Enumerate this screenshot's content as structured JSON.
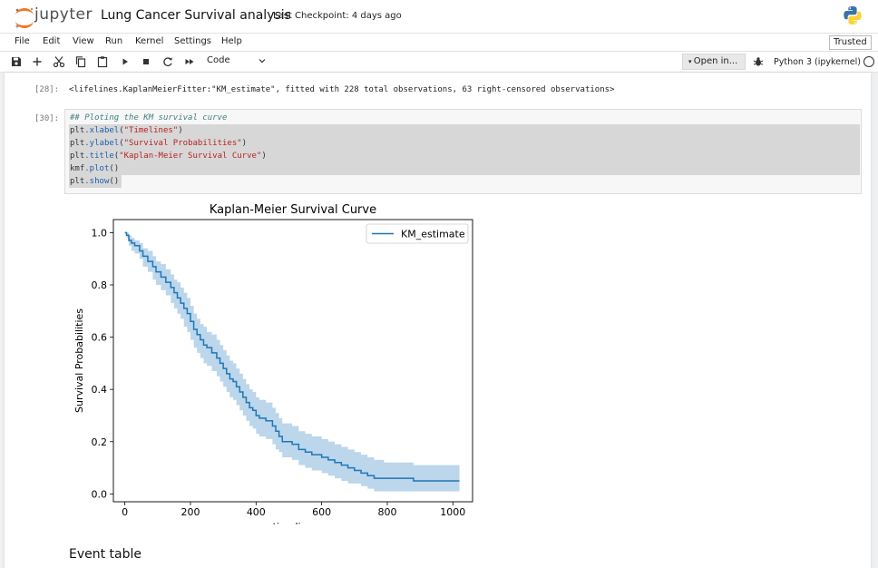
{
  "header": {
    "logo_text": "jupyter",
    "notebook_title": "Lung Cancer Survival analysis",
    "checkpoint": "Last Checkpoint: 4 days ago"
  },
  "menu": {
    "items": [
      "File",
      "Edit",
      "View",
      "Run",
      "Kernel",
      "Settings",
      "Help"
    ],
    "trusted": "Trusted"
  },
  "toolbar": {
    "icons": [
      "save-icon",
      "add-cell-icon",
      "cut-icon",
      "copy-icon",
      "paste-icon",
      "run-icon",
      "stop-icon",
      "restart-icon",
      "fast-forward-icon"
    ],
    "cell_type": "Code",
    "open_in": "Open in...",
    "kernel": "Python 3 (ipykernel)"
  },
  "cells": {
    "out28": {
      "prompt": "[28]:",
      "text": "<lifelines.KaplanMeierFitter:\"KM_estimate\", fitted with 228 total observations, 63 right-censored observations>"
    },
    "in30": {
      "prompt": "[30]:",
      "comment": "## Ploting the KM survival curve",
      "line1_obj": "plt",
      "line1_fn": ".xlabel",
      "line1_arg": "\"Timelines\"",
      "line2_obj": "plt",
      "line2_fn": ".ylabel",
      "line2_arg": "\"Survival Probabilities\"",
      "line3_obj": "plt",
      "line3_fn": ".title",
      "line3_arg": "\"Kaplan-Meier Survival Curve\"",
      "line4_obj": "kmf",
      "line4_fn": ".plot",
      "line5_obj": "plt",
      "line5_fn": ".show"
    }
  },
  "chart_data": {
    "type": "line",
    "title": "Kaplan-Meier Survival Curve",
    "xlabel": "timeline",
    "ylabel": "Survival Probabilities",
    "xlim": [
      -35,
      1060
    ],
    "ylim": [
      -0.03,
      1.05
    ],
    "xticks": [
      0,
      200,
      400,
      600,
      800,
      1000
    ],
    "yticks": [
      0.0,
      0.2,
      0.4,
      0.6,
      0.8,
      1.0
    ],
    "legend": "top-right",
    "colors": {
      "line": "#1f77b4",
      "band": "#a6c8e6"
    },
    "series": [
      {
        "name": "KM_estimate",
        "x": [
          0,
          5,
          12,
          20,
          30,
          45,
          55,
          70,
          85,
          95,
          110,
          125,
          140,
          150,
          160,
          170,
          180,
          190,
          200,
          210,
          220,
          230,
          240,
          250,
          265,
          280,
          290,
          300,
          310,
          320,
          330,
          340,
          350,
          360,
          370,
          380,
          390,
          400,
          410,
          430,
          450,
          460,
          470,
          480,
          510,
          530,
          550,
          570,
          600,
          620,
          640,
          660,
          680,
          700,
          720,
          740,
          760,
          790,
          820,
          880,
          1020
        ],
        "y": [
          1.0,
          0.99,
          0.97,
          0.96,
          0.95,
          0.93,
          0.91,
          0.89,
          0.87,
          0.85,
          0.83,
          0.81,
          0.79,
          0.77,
          0.75,
          0.73,
          0.71,
          0.69,
          0.66,
          0.63,
          0.61,
          0.59,
          0.57,
          0.56,
          0.54,
          0.52,
          0.5,
          0.48,
          0.46,
          0.44,
          0.43,
          0.41,
          0.39,
          0.37,
          0.35,
          0.33,
          0.32,
          0.3,
          0.29,
          0.28,
          0.26,
          0.24,
          0.22,
          0.2,
          0.19,
          0.17,
          0.16,
          0.15,
          0.14,
          0.13,
          0.12,
          0.11,
          0.1,
          0.09,
          0.08,
          0.07,
          0.06,
          0.06,
          0.06,
          0.05,
          0.05
        ],
        "ci_lower": [
          1.0,
          0.98,
          0.95,
          0.93,
          0.92,
          0.9,
          0.87,
          0.85,
          0.82,
          0.8,
          0.78,
          0.76,
          0.73,
          0.71,
          0.69,
          0.67,
          0.64,
          0.62,
          0.59,
          0.56,
          0.54,
          0.52,
          0.5,
          0.49,
          0.47,
          0.45,
          0.43,
          0.41,
          0.39,
          0.37,
          0.36,
          0.34,
          0.32,
          0.3,
          0.28,
          0.26,
          0.25,
          0.23,
          0.22,
          0.21,
          0.19,
          0.17,
          0.16,
          0.14,
          0.13,
          0.11,
          0.1,
          0.09,
          0.08,
          0.07,
          0.06,
          0.05,
          0.04,
          0.04,
          0.03,
          0.02,
          0.01,
          0.01,
          0.01,
          0.01,
          0.01
        ],
        "ci_upper": [
          1.0,
          1.0,
          0.99,
          0.98,
          0.97,
          0.96,
          0.94,
          0.93,
          0.91,
          0.89,
          0.88,
          0.86,
          0.84,
          0.82,
          0.81,
          0.79,
          0.77,
          0.75,
          0.72,
          0.69,
          0.67,
          0.65,
          0.64,
          0.62,
          0.61,
          0.59,
          0.57,
          0.55,
          0.53,
          0.51,
          0.5,
          0.48,
          0.46,
          0.44,
          0.42,
          0.4,
          0.39,
          0.37,
          0.36,
          0.35,
          0.33,
          0.31,
          0.29,
          0.27,
          0.26,
          0.24,
          0.23,
          0.22,
          0.21,
          0.2,
          0.19,
          0.18,
          0.17,
          0.16,
          0.15,
          0.14,
          0.13,
          0.12,
          0.12,
          0.11,
          0.11
        ]
      }
    ]
  },
  "event_table_heading": "Event table"
}
